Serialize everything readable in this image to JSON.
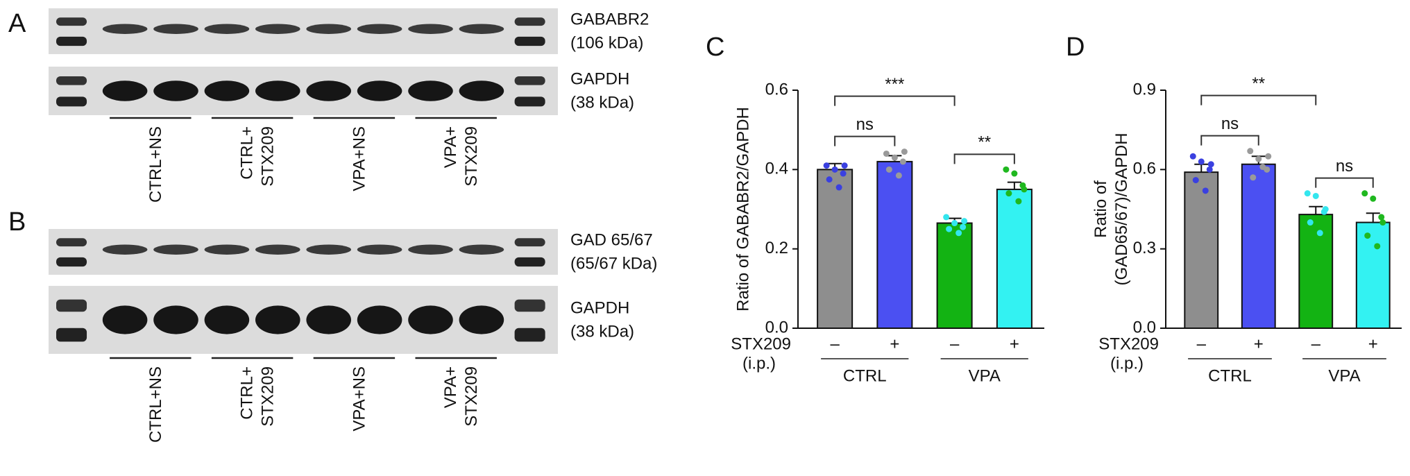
{
  "panel_labels": [
    "A",
    "B",
    "C",
    "D"
  ],
  "blots": [
    {
      "rows": [
        {
          "label": "GABABR2",
          "size": "(106 kDa)"
        },
        {
          "label": "GAPDH",
          "size": "(38 kDa)"
        }
      ],
      "groups": [
        [
          "CTRL+NS"
        ],
        [
          "CTRL+",
          "STX209"
        ],
        [
          "VPA+NS"
        ],
        [
          "VPA+",
          "STX209"
        ]
      ]
    },
    {
      "rows": [
        {
          "label": "GAD 65/67",
          "size": "(65/67 kDa)"
        },
        {
          "label": "GAPDH",
          "size": "(38 kDa)"
        }
      ],
      "groups": [
        [
          "CTRL+NS"
        ],
        [
          "CTRL+",
          "STX209"
        ],
        [
          "VPA+NS"
        ],
        [
          "VPA+",
          "STX209"
        ]
      ]
    }
  ],
  "chart_data": [
    {
      "type": "bar",
      "y_label": "Ratio of GABABR2/GAPDH",
      "categories": [
        "–",
        "+",
        "–",
        "+"
      ],
      "treatment_label": "STX209",
      "treatment_note": "(i.p.)",
      "groups": [
        "CTRL",
        "VPA"
      ],
      "values": [
        0.4,
        0.42,
        0.265,
        0.35
      ],
      "errors": [
        0.015,
        0.015,
        0.012,
        0.018
      ],
      "colors": [
        "#8e8e8e",
        "#4b50f2",
        "#13b313",
        "#33f2f2"
      ],
      "point_colors": [
        "#3a40e0",
        "#9a9a9a",
        "#33e6ee",
        "#1fb81f"
      ],
      "points": [
        [
          0.41,
          0.4,
          0.39,
          0.375,
          0.355,
          0.41
        ],
        [
          0.44,
          0.43,
          0.42,
          0.4,
          0.385,
          0.445
        ],
        [
          0.28,
          0.265,
          0.255,
          0.25,
          0.24,
          0.27
        ],
        [
          0.4,
          0.39,
          0.36,
          0.34,
          0.32,
          0.35
        ]
      ],
      "ylim": [
        0,
        0.6
      ],
      "yticks": [
        {
          "value": 0,
          "label": "0.0"
        },
        0.2,
        0.4,
        0.6
      ],
      "annotations": [
        {
          "text": "ns",
          "bars": [
            0,
            1
          ]
        },
        {
          "text": "**",
          "bars": [
            2,
            3
          ]
        },
        {
          "text": "***",
          "bars": [
            0,
            2
          ]
        }
      ]
    },
    {
      "type": "bar",
      "y_label": [
        "Ratio of",
        "(GAD65/67)/GAPDH"
      ],
      "categories": [
        "–",
        "+",
        "–",
        "+"
      ],
      "treatment_label": "STX209",
      "treatment_note": "(i.p.)",
      "groups": [
        "CTRL",
        "VPA"
      ],
      "values": [
        0.59,
        0.62,
        0.43,
        0.4
      ],
      "errors": [
        0.03,
        0.03,
        0.03,
        0.035
      ],
      "colors": [
        "#8e8e8e",
        "#4b50f2",
        "#13b313",
        "#33f2f2"
      ],
      "point_colors": [
        "#3a40e0",
        "#9a9a9a",
        "#33e6ee",
        "#1fb81f"
      ],
      "points": [
        [
          0.65,
          0.63,
          0.6,
          0.56,
          0.52,
          0.62
        ],
        [
          0.67,
          0.64,
          0.6,
          0.57,
          0.61,
          0.65
        ],
        [
          0.51,
          0.5,
          0.44,
          0.4,
          0.36,
          0.45
        ],
        [
          0.51,
          0.49,
          0.42,
          0.35,
          0.31,
          0.4
        ]
      ],
      "ylim": [
        0,
        0.9
      ],
      "yticks": [
        {
          "value": 0,
          "label": "0.0"
        },
        0.3,
        0.6,
        0.9
      ],
      "annotations": [
        {
          "text": "ns",
          "bars": [
            0,
            1
          ]
        },
        {
          "text": "ns",
          "bars": [
            2,
            3
          ]
        },
        {
          "text": "**",
          "bars": [
            0,
            2
          ]
        }
      ]
    }
  ]
}
